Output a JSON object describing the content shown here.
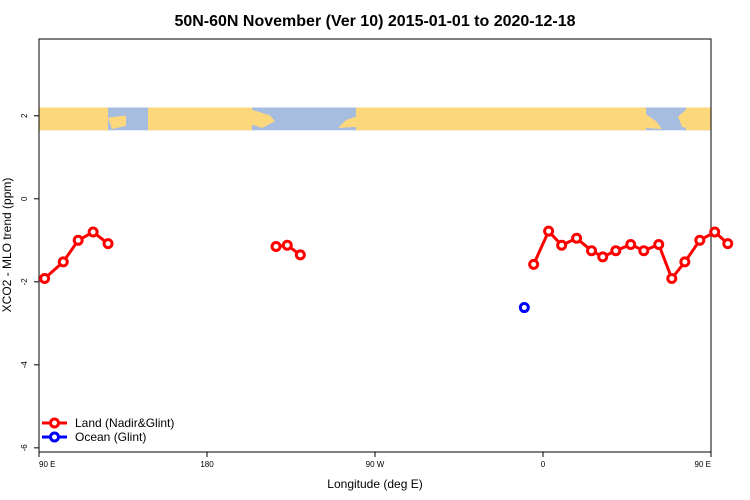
{
  "chart_data": {
    "type": "line",
    "title": "50N-60N November (Ver 10)   2015-01-01 to 2020-12-18",
    "xlabel": "Longitude (deg E)",
    "ylabel": "XCO2 - MLO trend (ppm)",
    "xlim": [
      90,
      450
    ],
    "ylim": [
      -6.1,
      3.85
    ],
    "x_ticks": [
      {
        "value": 90,
        "label": "90 E"
      },
      {
        "value": 180,
        "label": "180"
      },
      {
        "value": 270,
        "label": "90 W"
      },
      {
        "value": 360,
        "label": "0"
      },
      {
        "value": 450,
        "label": "90 E"
      },
      {
        "value": 540,
        "label": "180"
      }
    ],
    "y_ticks": [
      {
        "value": 2,
        "label": "2"
      },
      {
        "value": 0,
        "label": "0"
      },
      {
        "value": -2,
        "label": "-2"
      },
      {
        "value": -4,
        "label": "-4"
      },
      {
        "value": -6,
        "label": "-6"
      }
    ],
    "grid": false,
    "legend_position": "bottom-left",
    "map_strip": {
      "ymin": 1.65,
      "ymax": 2.2,
      "land_color": "#fcd77c",
      "ocean_color": "#a7bde0"
    },
    "series": [
      {
        "name": "Land (Nadir&Glint)",
        "color": "#ff0000",
        "segments": [
          [
            [
              93,
              -1.92
            ],
            [
              103,
              -1.52
            ],
            [
              111,
              -1.0
            ],
            [
              119,
              -0.8
            ],
            [
              127,
              -1.08
            ]
          ],
          [
            [
              217,
              -1.15
            ],
            [
              223,
              -1.12
            ],
            [
              230,
              -1.35
            ]
          ],
          [
            [
              355,
              -1.58
            ],
            [
              363,
              -0.78
            ],
            [
              370,
              -1.12
            ],
            [
              378,
              -0.95
            ],
            [
              386,
              -1.25
            ],
            [
              392,
              -1.4
            ],
            [
              399,
              -1.25
            ],
            [
              407,
              -1.1
            ],
            [
              414,
              -1.25
            ],
            [
              422,
              -1.1
            ],
            [
              429,
              -1.92
            ],
            [
              436,
              -1.52
            ],
            [
              444,
              -1.0
            ],
            [
              452,
              -0.8
            ],
            [
              459,
              -1.08
            ]
          ]
        ]
      },
      {
        "name": "Ocean (Glint)",
        "color": "#0000ff",
        "segments": [
          [
            [
              350,
              -2.62
            ]
          ]
        ]
      }
    ]
  }
}
